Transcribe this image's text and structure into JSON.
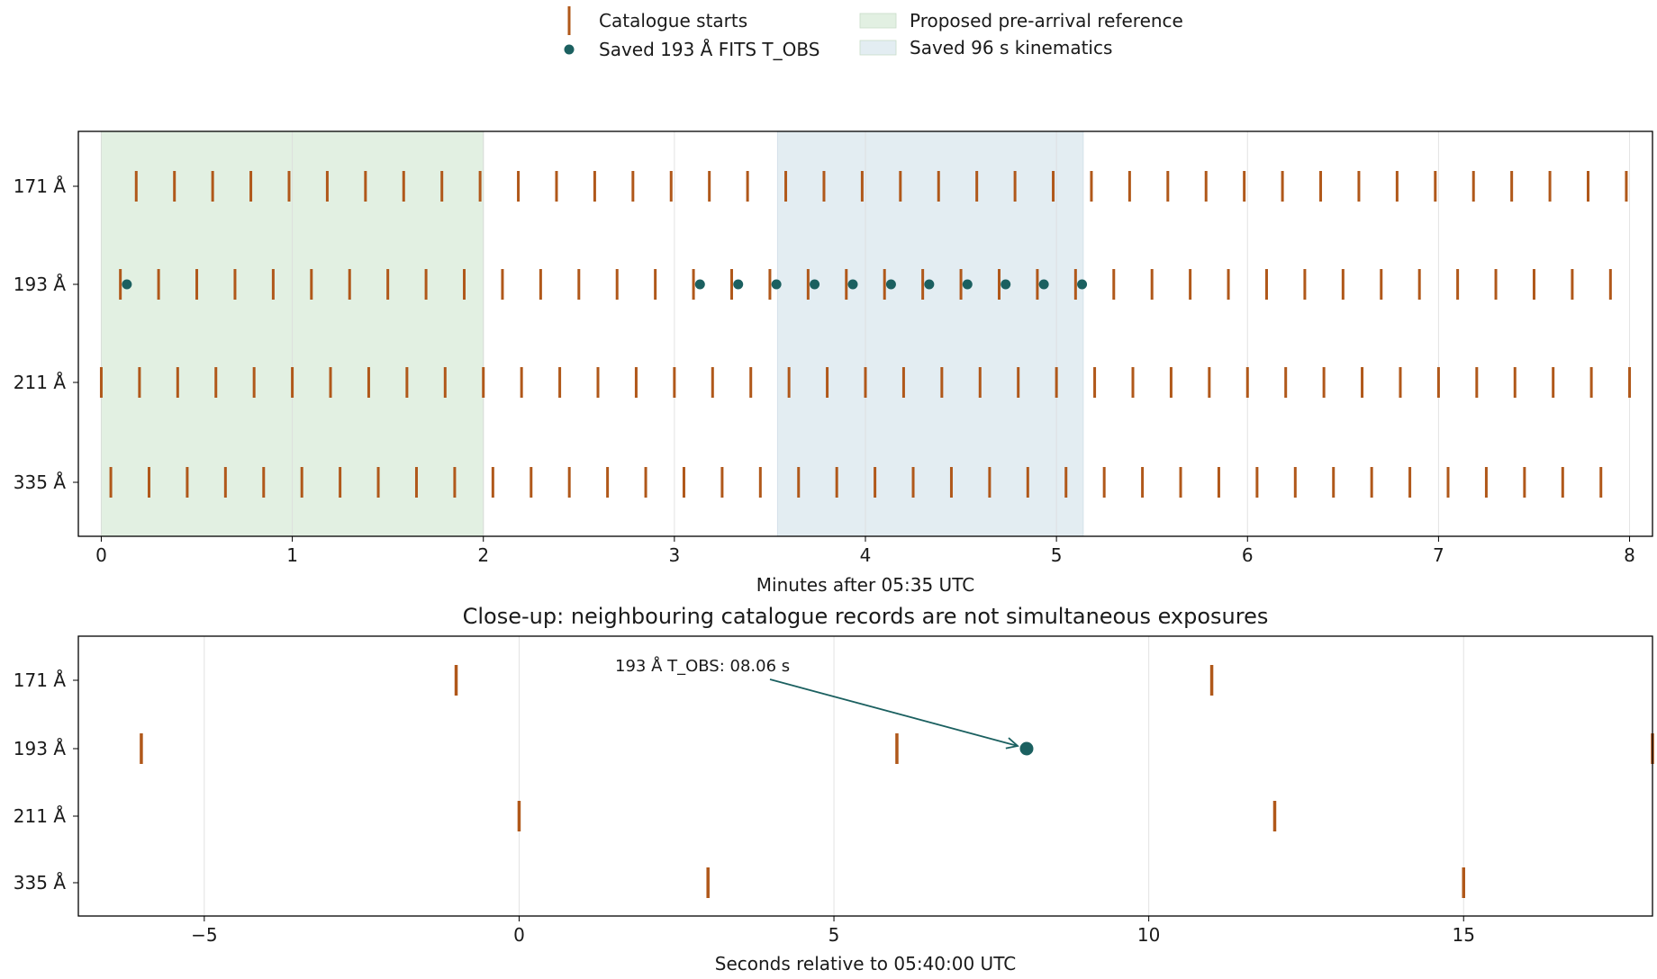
{
  "legend": {
    "items": [
      {
        "label": "Catalogue starts",
        "kind": "tick",
        "color": "#b0581a"
      },
      {
        "label": "Saved 193 Å FITS T_OBS",
        "kind": "dot",
        "color": "#1b6060"
      },
      {
        "label": "Proposed pre-arrival reference",
        "kind": "patch",
        "color": "#e2f0e2"
      },
      {
        "label": "Saved 96 s kinematics",
        "kind": "patch",
        "color": "#e3edf2"
      }
    ]
  },
  "chart_data": [
    {
      "type": "scatter",
      "title": "",
      "xlabel": "Minutes after 05:35 UTC",
      "ylabel": "",
      "xlim": [
        -0.12,
        8.12
      ],
      "xticks": [
        0,
        1,
        2,
        3,
        4,
        5,
        6,
        7,
        8
      ],
      "categories": [
        "171 Å",
        "193 Å",
        "211 Å",
        "335 Å"
      ],
      "grid": "vertical",
      "spans": [
        {
          "name": "Proposed pre-arrival reference",
          "x0": 0.0,
          "x1": 2.0,
          "color": "#e2f0e2"
        },
        {
          "name": "Saved 96 s kinematics",
          "x0": 3.54,
          "x1": 5.14,
          "color": "#e3edf2"
        }
      ],
      "series": [
        {
          "name": "Catalogue starts",
          "marker": "tick",
          "color": "#b0581a",
          "rows": [
            {
              "category": "171 Å",
              "start": 0.183,
              "step": 0.2,
              "count": 40
            },
            {
              "category": "193 Å",
              "start": 0.1,
              "step": 0.2,
              "count": 40
            },
            {
              "category": "211 Å",
              "start": 0.0,
              "step": 0.2,
              "count": 41
            },
            {
              "category": "335 Å",
              "start": 0.05,
              "step": 0.2,
              "count": 40
            }
          ]
        },
        {
          "name": "Saved 193 Å FITS T_OBS",
          "marker": "dot",
          "color": "#1b6060",
          "category": "193 Å",
          "x": [
            0.134,
            3.134,
            3.334,
            3.534,
            3.734,
            3.934,
            4.134,
            4.334,
            4.534,
            4.734,
            4.934,
            5.134
          ]
        }
      ]
    },
    {
      "type": "scatter",
      "title": "Close-up: neighbouring catalogue records are not simultaneous exposures",
      "xlabel": "Seconds relative to 05:40:00 UTC",
      "ylabel": "",
      "xlim": [
        -7.0,
        18.0
      ],
      "xticks": [
        -5,
        0,
        5,
        10,
        15
      ],
      "xticklabels": [
        "−5",
        "0",
        "5",
        "10",
        "15"
      ],
      "categories": [
        "171 Å",
        "193 Å",
        "211 Å",
        "335 Å"
      ],
      "grid": "vertical",
      "series": [
        {
          "name": "Catalogue starts",
          "marker": "tick",
          "color": "#b0581a",
          "points": [
            {
              "category": "171 Å",
              "x": -1.0
            },
            {
              "category": "171 Å",
              "x": 11.0
            },
            {
              "category": "193 Å",
              "x": -6.0
            },
            {
              "category": "193 Å",
              "x": 6.0
            },
            {
              "category": "193 Å",
              "x": 18.0
            },
            {
              "category": "211 Å",
              "x": 0.0
            },
            {
              "category": "211 Å",
              "x": 12.0
            },
            {
              "category": "335 Å",
              "x": 3.0
            },
            {
              "category": "335 Å",
              "x": 15.0
            }
          ]
        },
        {
          "name": "Saved 193 Å FITS T_OBS",
          "marker": "dot",
          "color": "#1b6060",
          "points": [
            {
              "category": "193 Å",
              "x": 8.06
            }
          ]
        }
      ],
      "annotation": {
        "text": "193 Å T_OBS: 08.06 s",
        "category": "193 Å",
        "x": 8.06
      }
    }
  ]
}
